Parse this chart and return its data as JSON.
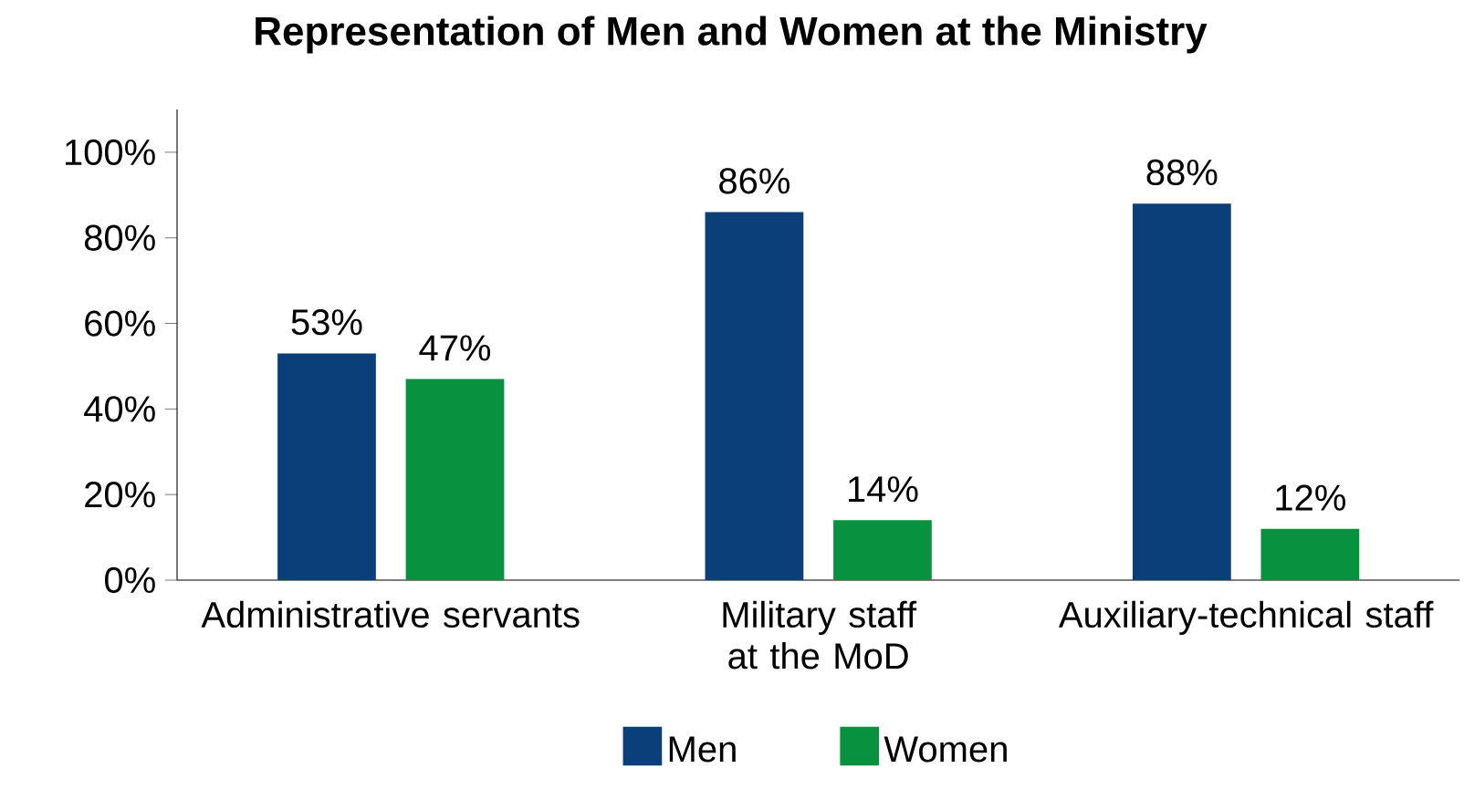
{
  "chart_data": {
    "type": "bar",
    "title": "Representation of Men and Women at the Ministry",
    "categories": [
      "Administrative servants",
      "Military staff at the MoD",
      "Auxiliary-technical staff"
    ],
    "series": [
      {
        "name": "Men",
        "color": "#0b3f7a",
        "values": [
          53,
          86,
          88
        ],
        "value_labels": [
          "53%",
          "86%",
          "88%"
        ]
      },
      {
        "name": "Women",
        "color": "#08923f",
        "values": [
          47,
          14,
          12
        ],
        "value_labels": [
          "47%",
          "14%",
          "12%"
        ]
      }
    ],
    "ylim": [
      0,
      110
    ],
    "yticks": [
      {
        "value": 0,
        "label": "0%"
      },
      {
        "value": 20,
        "label": "20%"
      },
      {
        "value": 40,
        "label": "40%"
      },
      {
        "value": 60,
        "label": "60%"
      },
      {
        "value": 80,
        "label": "80%"
      },
      {
        "value": 100,
        "label": "100%"
      }
    ],
    "grid": false,
    "legend": "bottom"
  }
}
